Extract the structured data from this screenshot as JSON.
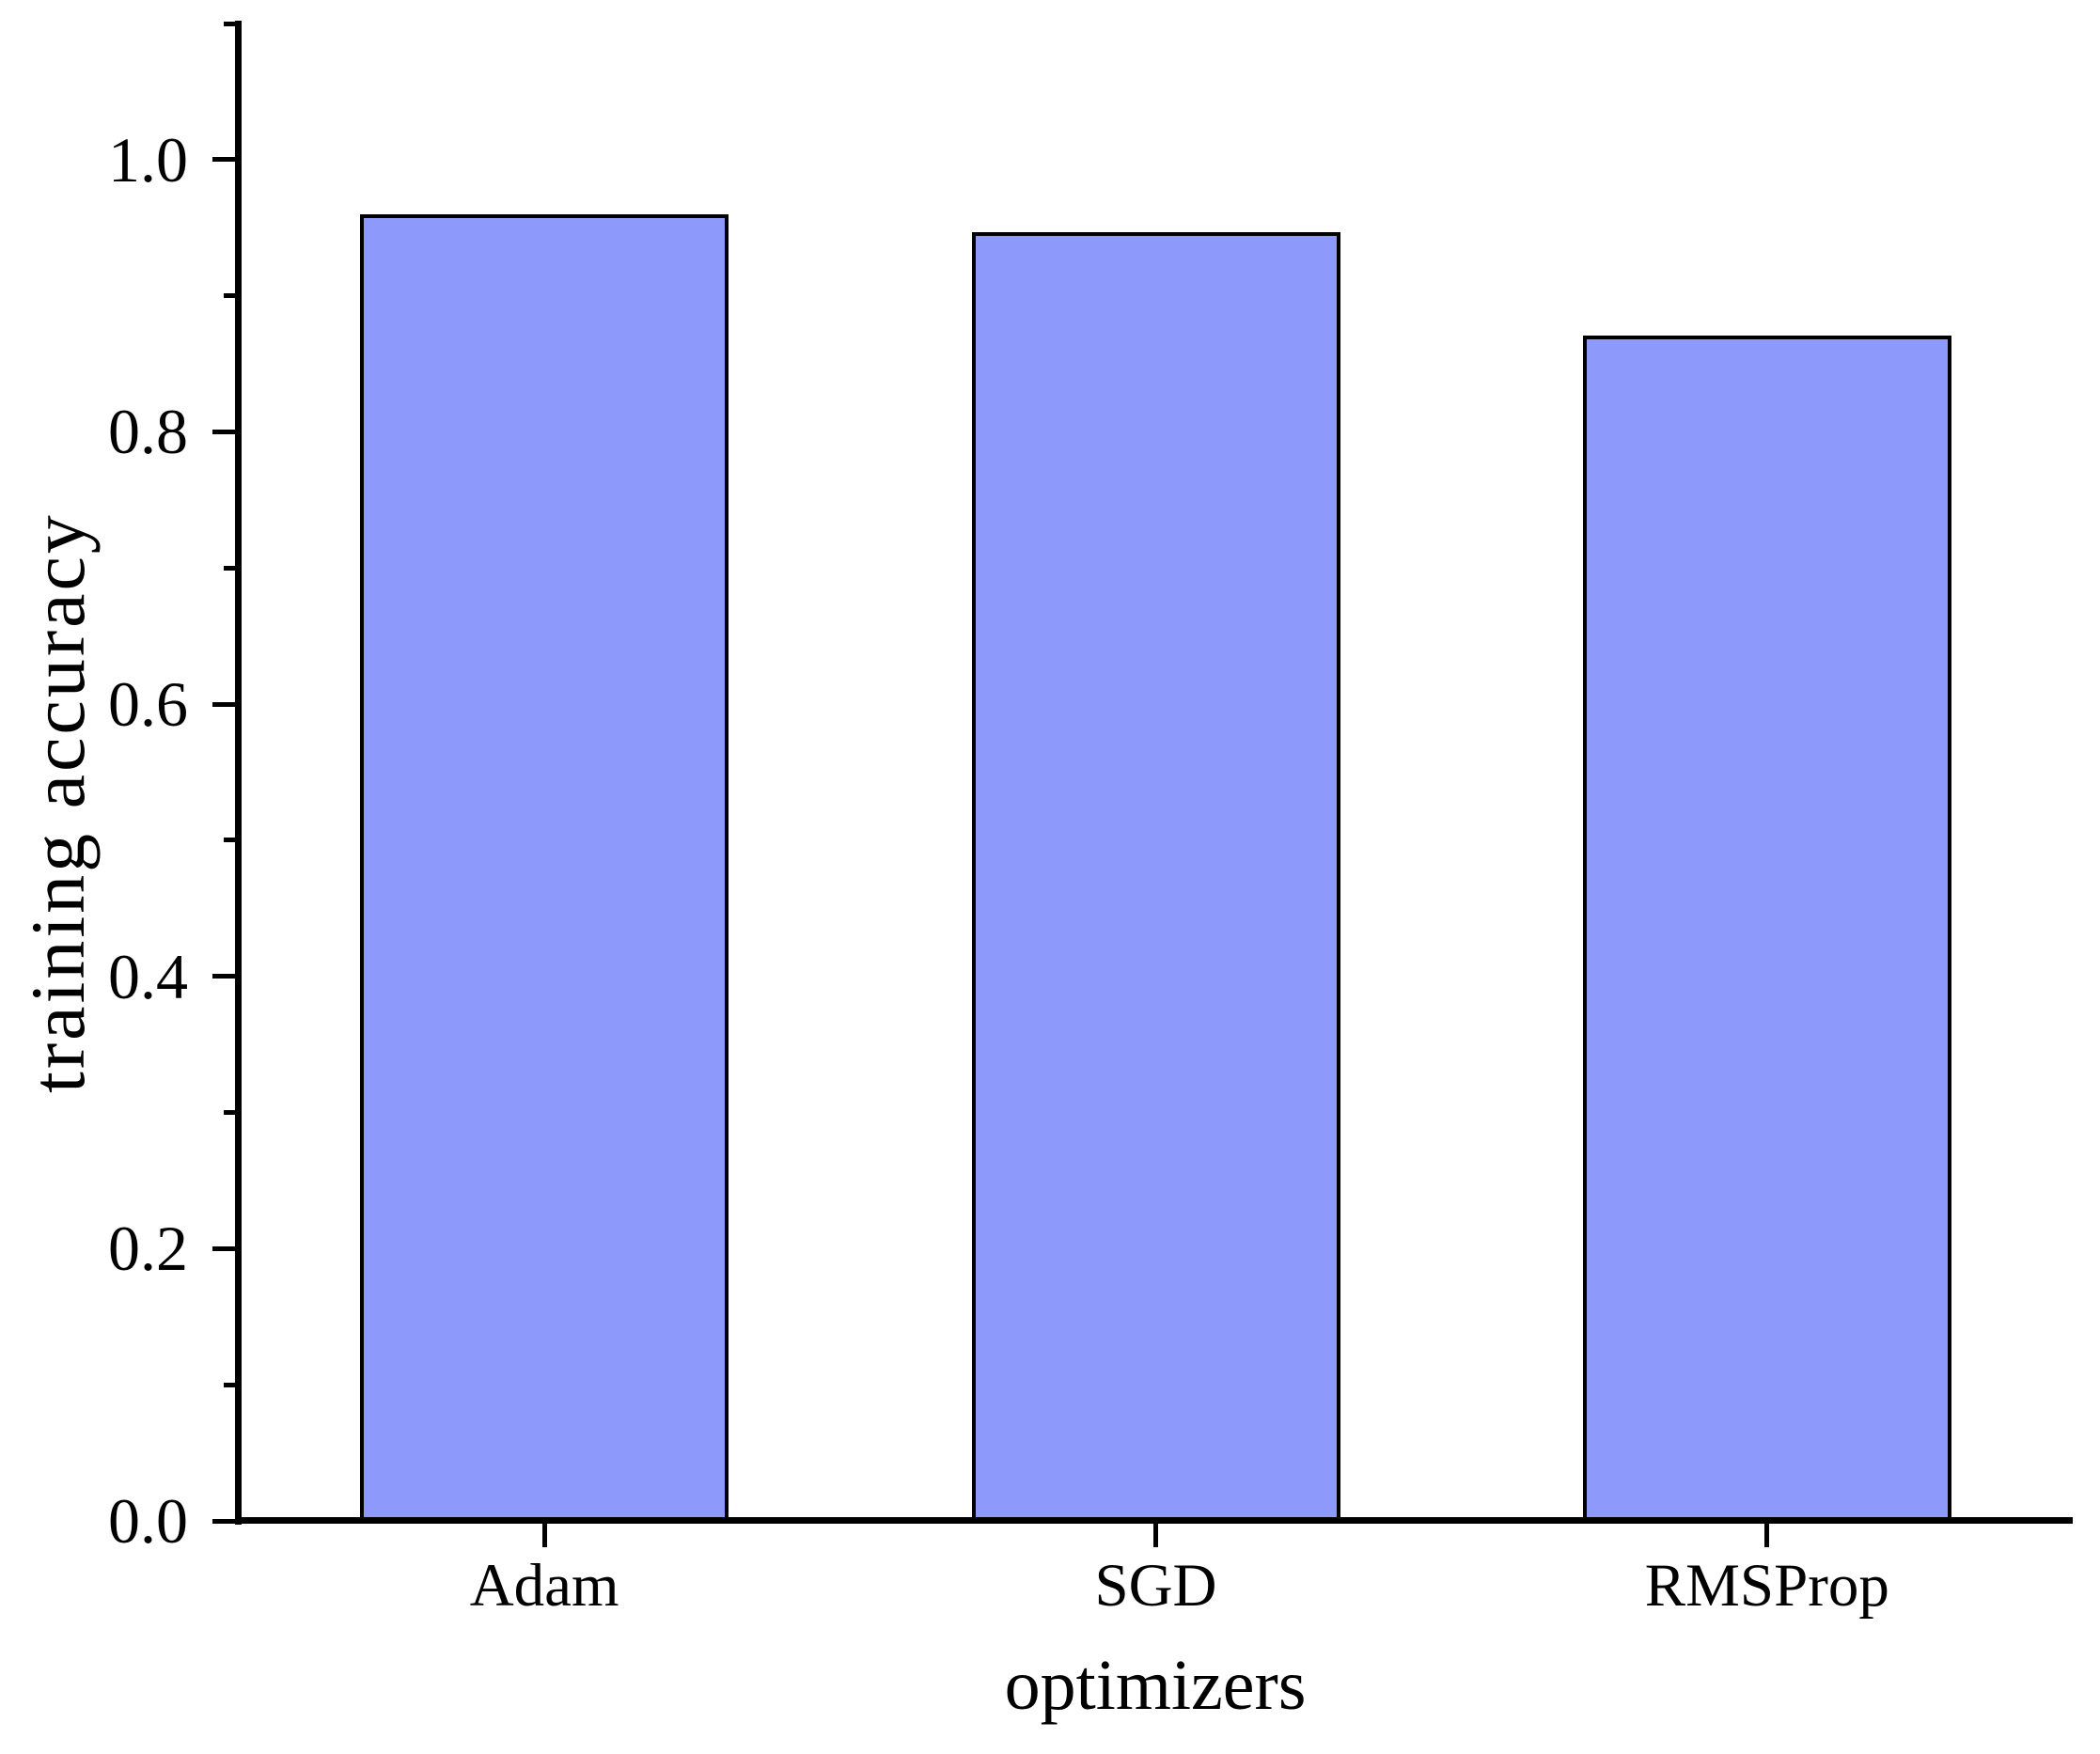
{
  "chart_data": {
    "type": "bar",
    "title": "",
    "categories": [
      "Adam",
      "SGD",
      "RMSProp"
    ],
    "values": [
      0.96,
      0.947,
      0.871
    ],
    "xlabel": "optimizers",
    "ylabel": "training accuracy",
    "ylim": [
      0,
      1.1
    ],
    "y_major_ticks": [
      0.0,
      0.2,
      0.4,
      0.6,
      0.8,
      1.0
    ],
    "y_major_tick_labels": [
      "0.0",
      "0.2",
      "0.4",
      "0.6",
      "0.8",
      "1.0"
    ],
    "y_minor_ticks": [
      0.1,
      0.3,
      0.5,
      0.7,
      0.9,
      1.1
    ],
    "grid": false,
    "legend": "none",
    "colors": {
      "bar_fill": "#8D9AFC",
      "bar_edge": "#000000",
      "axis": "#000000",
      "text": "#000000",
      "background": "#FFFFFF"
    }
  }
}
